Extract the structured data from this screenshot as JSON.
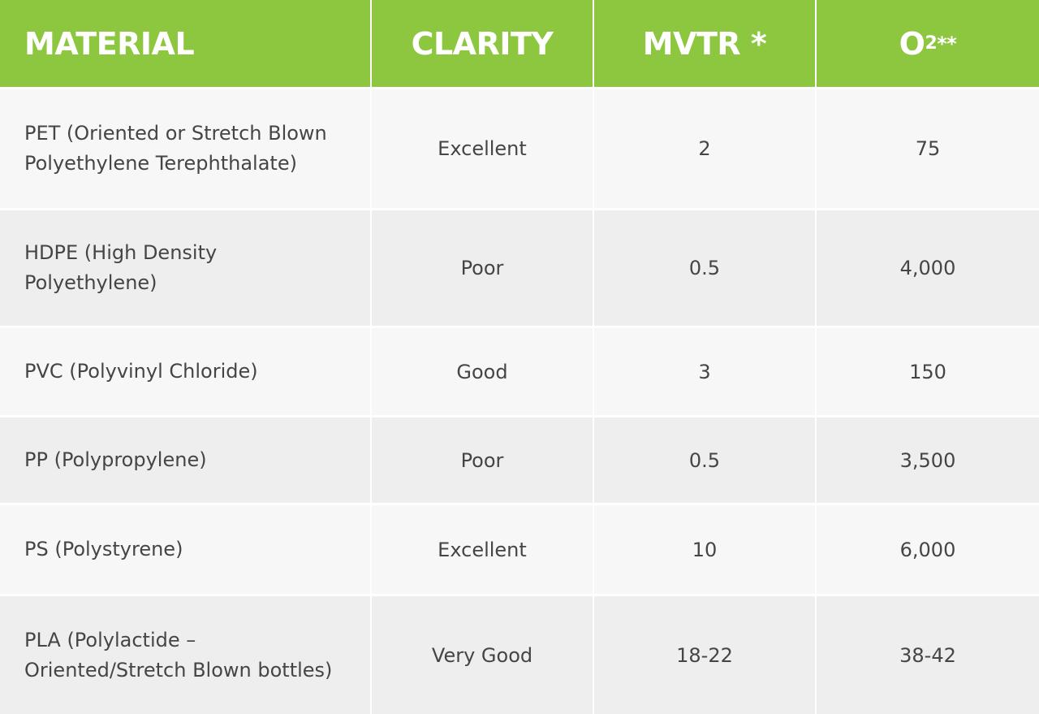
{
  "table": {
    "header": [
      {
        "text": "MATERIAL"
      },
      {
        "text": "CLARITY"
      },
      {
        "text": "MVTR *"
      },
      {
        "text": "O",
        "sub": "2",
        "sup": "**"
      }
    ],
    "rows": [
      [
        [
          "PET (Oriented or Stretch Blown",
          "Polyethylene Terephthalate)"
        ],
        "Excellent",
        "2",
        "75"
      ],
      [
        [
          "HDPE (High Density",
          "Polyethylene)"
        ],
        "Poor",
        "0.5",
        "4,000"
      ],
      [
        [
          "PVC (Polyvinyl Chloride)"
        ],
        "Good",
        "3",
        "150"
      ],
      [
        [
          "PP (Polypropylene)"
        ],
        "Poor",
        "0.5",
        "3,500"
      ],
      [
        [
          "PS (Polystyrene)"
        ],
        "Excellent",
        "10",
        "6,000"
      ],
      [
        [
          "PLA (Polylactide –",
          "Oriented/Stretch Blown bottles)"
        ],
        "Very Good",
        "18-22",
        "38-42"
      ]
    ]
  }
}
